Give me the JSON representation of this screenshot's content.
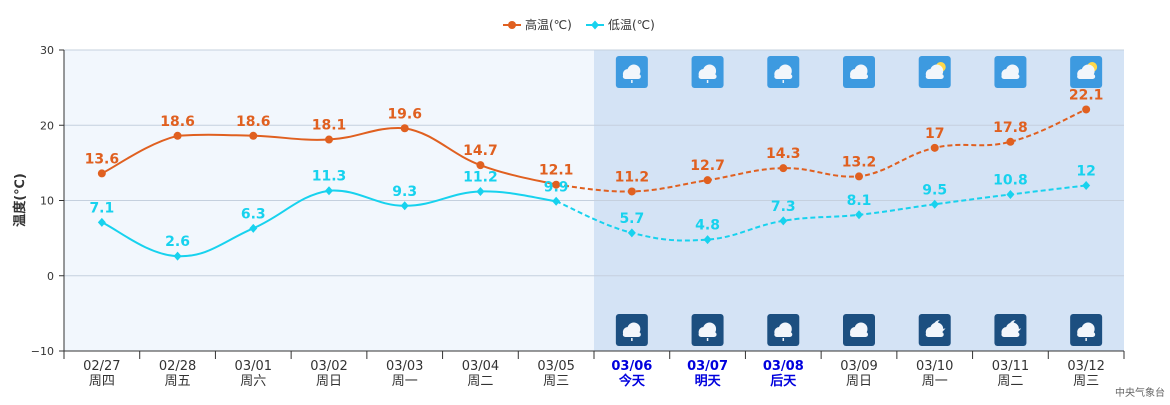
{
  "chart_data": {
    "type": "line",
    "ylabel": "温度(℃)",
    "ylim": [
      -10,
      30
    ],
    "yticks": [
      -10,
      0,
      10,
      20,
      30
    ],
    "grid": true,
    "legend_position": "top-center",
    "categories": [
      {
        "date": "02/27",
        "day": "周四",
        "highlight": false,
        "forecast": false
      },
      {
        "date": "02/28",
        "day": "周五",
        "highlight": false,
        "forecast": false
      },
      {
        "date": "03/01",
        "day": "周六",
        "highlight": false,
        "forecast": false
      },
      {
        "date": "03/02",
        "day": "周日",
        "highlight": false,
        "forecast": false
      },
      {
        "date": "03/03",
        "day": "周一",
        "highlight": false,
        "forecast": false
      },
      {
        "date": "03/04",
        "day": "周二",
        "highlight": false,
        "forecast": false
      },
      {
        "date": "03/05",
        "day": "周三",
        "highlight": false,
        "forecast": false
      },
      {
        "date": "03/06",
        "day": "今天",
        "highlight": true,
        "forecast": true
      },
      {
        "date": "03/07",
        "day": "明天",
        "highlight": true,
        "forecast": true
      },
      {
        "date": "03/08",
        "day": "后天",
        "highlight": true,
        "forecast": true
      },
      {
        "date": "03/09",
        "day": "周日",
        "highlight": false,
        "forecast": true
      },
      {
        "date": "03/10",
        "day": "周一",
        "highlight": false,
        "forecast": true
      },
      {
        "date": "03/11",
        "day": "周二",
        "highlight": false,
        "forecast": true
      },
      {
        "date": "03/12",
        "day": "周三",
        "highlight": false,
        "forecast": true
      }
    ],
    "series": [
      {
        "name": "高温(℃)",
        "color": "#e06020",
        "marker": "circle",
        "values": [
          13.6,
          18.6,
          18.6,
          18.1,
          19.6,
          14.7,
          12.1,
          11.2,
          12.7,
          14.3,
          13.2,
          17,
          17.8,
          22.1
        ]
      },
      {
        "name": "低温(℃)",
        "color": "#17d2ee",
        "marker": "diamond",
        "values": [
          7.1,
          2.6,
          6.3,
          11.3,
          9.3,
          11.2,
          9.9,
          5.7,
          4.8,
          7.3,
          8.1,
          9.5,
          10.8,
          12
        ]
      }
    ],
    "forecast_start_index": 7,
    "forecast_background": "#d4e3f5",
    "history_background": "#f2f7fd",
    "highlight_color": "#0000dd",
    "day_icons": [
      "rain-cloud-icon",
      "rain-cloud-icon",
      "rain-cloud-icon",
      "cloud-icon",
      "partly-sunny-icon",
      "cloud-icon",
      "partly-sunny-icon"
    ],
    "night_icons": [
      "rain-cloud-icon",
      "rain-cloud-icon",
      "rain-cloud-icon",
      "cloud-icon",
      "moon-cloud-icon",
      "moon-cloud-icon",
      "rain-cloud-icon"
    ]
  },
  "source": "中央气象台"
}
